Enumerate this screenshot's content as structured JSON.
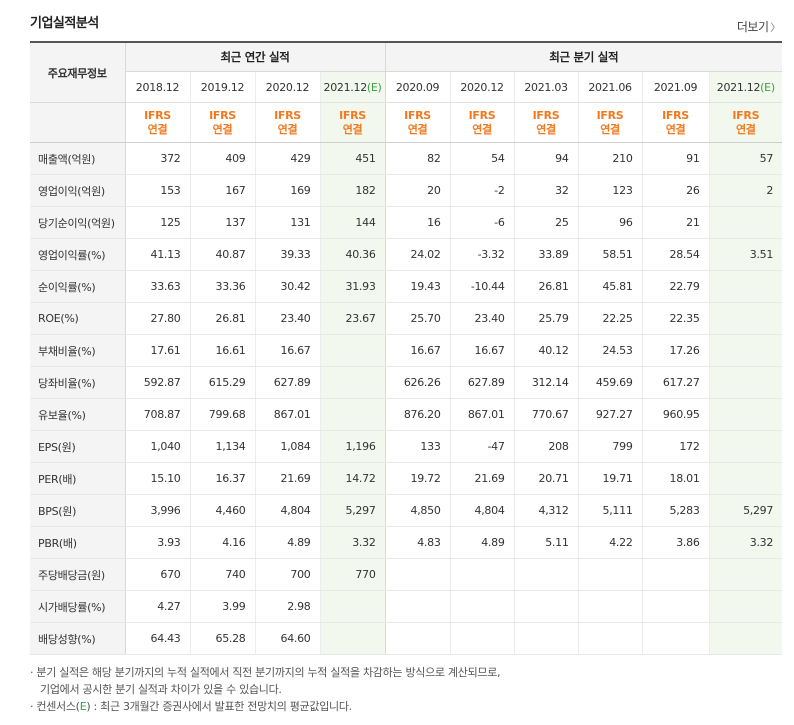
{
  "title": "기업실적분석",
  "more_label": "더보기",
  "header": {
    "corner": "주요재무정보",
    "annual_group": "최근 연간 실적",
    "quarter_group": "최근 분기 실적",
    "periods": [
      {
        "date": "2018.12",
        "est": ""
      },
      {
        "date": "2019.12",
        "est": ""
      },
      {
        "date": "2020.12",
        "est": ""
      },
      {
        "date": "2021.12",
        "est": "(E)"
      },
      {
        "date": "2020.09",
        "est": ""
      },
      {
        "date": "2020.12",
        "est": ""
      },
      {
        "date": "2021.03",
        "est": ""
      },
      {
        "date": "2021.06",
        "est": ""
      },
      {
        "date": "2021.09",
        "est": ""
      },
      {
        "date": "2021.12",
        "est": "(E)"
      }
    ],
    "ifrs_line1": "IFRS",
    "ifrs_line2": "연결"
  },
  "rows": [
    {
      "label": "매출액(억원)",
      "values": [
        "372",
        "409",
        "429",
        "451",
        "82",
        "54",
        "94",
        "210",
        "91",
        "57"
      ]
    },
    {
      "label": "영업이익(억원)",
      "values": [
        "153",
        "167",
        "169",
        "182",
        "20",
        "-2",
        "32",
        "123",
        "26",
        "2"
      ]
    },
    {
      "label": "당기순이익(억원)",
      "values": [
        "125",
        "137",
        "131",
        "144",
        "16",
        "-6",
        "25",
        "96",
        "21",
        ""
      ]
    },
    {
      "label": "영업이익률(%)",
      "values": [
        "41.13",
        "40.87",
        "39.33",
        "40.36",
        "24.02",
        "-3.32",
        "33.89",
        "58.51",
        "28.54",
        "3.51"
      ]
    },
    {
      "label": "순이익률(%)",
      "values": [
        "33.63",
        "33.36",
        "30.42",
        "31.93",
        "19.43",
        "-10.44",
        "26.81",
        "45.81",
        "22.79",
        ""
      ]
    },
    {
      "label": "ROE(%)",
      "values": [
        "27.80",
        "26.81",
        "23.40",
        "23.67",
        "25.70",
        "23.40",
        "25.79",
        "22.25",
        "22.35",
        ""
      ]
    },
    {
      "label": "부채비율(%)",
      "values": [
        "17.61",
        "16.61",
        "16.67",
        "",
        "16.67",
        "16.67",
        "40.12",
        "24.53",
        "17.26",
        ""
      ]
    },
    {
      "label": "당좌비율(%)",
      "values": [
        "592.87",
        "615.29",
        "627.89",
        "",
        "626.26",
        "627.89",
        "312.14",
        "459.69",
        "617.27",
        ""
      ]
    },
    {
      "label": "유보율(%)",
      "values": [
        "708.87",
        "799.68",
        "867.01",
        "",
        "876.20",
        "867.01",
        "770.67",
        "927.27",
        "960.95",
        ""
      ]
    },
    {
      "label": "EPS(원)",
      "values": [
        "1,040",
        "1,134",
        "1,084",
        "1,196",
        "133",
        "-47",
        "208",
        "799",
        "172",
        ""
      ]
    },
    {
      "label": "PER(배)",
      "values": [
        "15.10",
        "16.37",
        "21.69",
        "14.72",
        "19.72",
        "21.69",
        "20.71",
        "19.71",
        "18.01",
        ""
      ]
    },
    {
      "label": "BPS(원)",
      "values": [
        "3,996",
        "4,460",
        "4,804",
        "5,297",
        "4,850",
        "4,804",
        "4,312",
        "5,111",
        "5,283",
        "5,297"
      ]
    },
    {
      "label": "PBR(배)",
      "values": [
        "3.93",
        "4.16",
        "4.89",
        "3.32",
        "4.83",
        "4.89",
        "5.11",
        "4.22",
        "3.86",
        "3.32"
      ]
    },
    {
      "label": "주당배당금(원)",
      "values": [
        "670",
        "740",
        "700",
        "770",
        "",
        "",
        "",
        "",
        "",
        ""
      ]
    },
    {
      "label": "시가배당률(%)",
      "values": [
        "4.27",
        "3.99",
        "2.98",
        "",
        "",
        "",
        "",
        "",
        "",
        ""
      ]
    },
    {
      "label": "배당성향(%)",
      "values": [
        "64.43",
        "65.28",
        "64.60",
        "",
        "",
        "",
        "",
        "",
        "",
        ""
      ]
    }
  ],
  "group_starts": [
    0,
    6,
    9,
    13
  ],
  "notes": {
    "line1": "분기 실적은 해당 분기까지의 누적 실적에서 직전 분기까지의 누적 실적을 차감하는 방식으로 계산되므로,",
    "line2": "기업에서 공시한 분기 실적과 차이가 있을 수 있습니다.",
    "line3_pre": "컨센서스(",
    "line3_e": "E",
    "line3_post": ") : 최근 3개월간 증권사에서 발표한 전망치의 평균값입니다."
  },
  "colors": {
    "ifrs": "#f17a1f",
    "estimate": "#3aa040",
    "negative": "#e8452d",
    "estimate_bg": "#f3f8ef",
    "header_bg": "#f4f4f4"
  }
}
